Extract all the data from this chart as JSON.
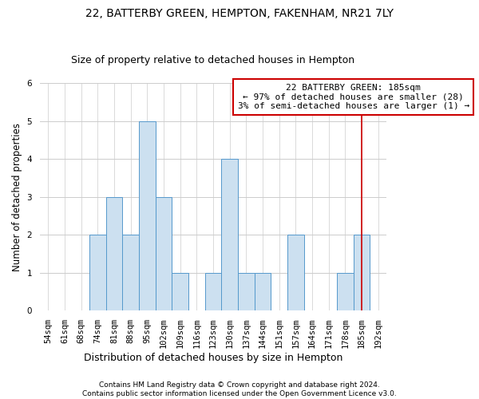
{
  "title": "22, BATTERBY GREEN, HEMPTON, FAKENHAM, NR21 7LY",
  "subtitle": "Size of property relative to detached houses in Hempton",
  "xlabel": "Distribution of detached houses by size in Hempton",
  "ylabel": "Number of detached properties",
  "categories": [
    "54sqm",
    "61sqm",
    "68sqm",
    "74sqm",
    "81sqm",
    "88sqm",
    "95sqm",
    "102sqm",
    "109sqm",
    "116sqm",
    "123sqm",
    "130sqm",
    "137sqm",
    "144sqm",
    "151sqm",
    "157sqm",
    "164sqm",
    "171sqm",
    "178sqm",
    "185sqm",
    "192sqm"
  ],
  "values": [
    0,
    0,
    0,
    2,
    3,
    2,
    5,
    3,
    1,
    0,
    1,
    4,
    1,
    1,
    0,
    2,
    0,
    0,
    1,
    2,
    0
  ],
  "bar_color": "#cce0f0",
  "bar_edge_color": "#5599cc",
  "highlight_index": 19,
  "highlight_line_color": "#cc0000",
  "annotation_text": "22 BATTERBY GREEN: 185sqm\n← 97% of detached houses are smaller (28)\n3% of semi-detached houses are larger (1) →",
  "annotation_box_color": "#ffffff",
  "annotation_box_edge_color": "#cc0000",
  "ylim": [
    0,
    6
  ],
  "yticks": [
    0,
    1,
    2,
    3,
    4,
    5,
    6
  ],
  "grid_color": "#cccccc",
  "background_color": "#ffffff",
  "footer_text": "Contains HM Land Registry data © Crown copyright and database right 2024.\nContains public sector information licensed under the Open Government Licence v3.0.",
  "title_fontsize": 10,
  "subtitle_fontsize": 9,
  "xlabel_fontsize": 9,
  "ylabel_fontsize": 8.5,
  "tick_fontsize": 7.5,
  "annotation_fontsize": 8,
  "footer_fontsize": 6.5
}
